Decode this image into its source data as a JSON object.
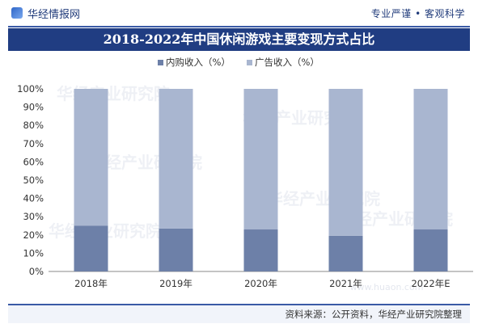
{
  "header": {
    "brand": "华经情报网",
    "slogan": "专业严谨 • 客观科学",
    "title": "2018-2022年中国休闲游戏主要变现方式占比"
  },
  "watermark": {
    "text": "华经产业研究院",
    "url": "www.huaon.com"
  },
  "footer": {
    "source": "资料来源：公开资料，华经产业研究院整理"
  },
  "colors": {
    "in_app": "#6d80a8",
    "ads": "#a9b6d0",
    "title_bg": "#203d82"
  },
  "chart_data": {
    "type": "bar",
    "stacked": true,
    "categories": [
      "2018年",
      "2019年",
      "2020年",
      "2021年",
      "2022年E"
    ],
    "series": [
      {
        "name": "内购收入（%）",
        "values": [
          25,
          23.5,
          23,
          19.5,
          23
        ]
      },
      {
        "name": "广告收入（%）",
        "values": [
          75,
          76.5,
          77,
          80.5,
          77
        ]
      }
    ],
    "y_ticks": [
      "0%",
      "10%",
      "20%",
      "30%",
      "40%",
      "50%",
      "60%",
      "70%",
      "80%",
      "90%",
      "100%"
    ],
    "ylim": [
      0,
      100
    ],
    "legend_position": "top",
    "grid": false
  }
}
